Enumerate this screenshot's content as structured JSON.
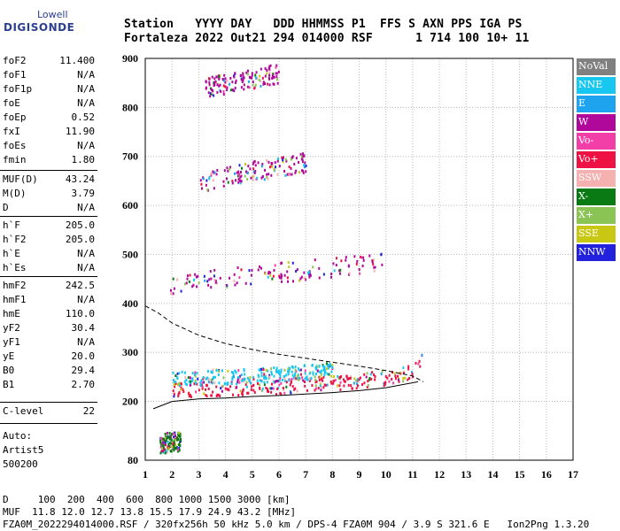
{
  "logo": {
    "top": "Lowell",
    "bottom": "DIGISONDE"
  },
  "header": {
    "row1": "Station   YYYY DAY   DDD HHMMSS P1  FFS S AXN PPS IGA PS",
    "row2": "Fortaleza 2022 Out21 294 014000 RSF      1 714 100 10+ 11"
  },
  "scaled": [
    {
      "k": "foF2",
      "v": "11.400"
    },
    {
      "k": "foF1",
      "v": "N/A"
    },
    {
      "k": "foF1p",
      "v": "N/A"
    },
    {
      "k": "foE",
      "v": "N/A"
    },
    {
      "k": "foEp",
      "v": "0.52"
    },
    {
      "k": "fxI",
      "v": "11.90"
    },
    {
      "k": "foEs",
      "v": "N/A"
    },
    {
      "k": "fmin",
      "v": "1.80"
    },
    {
      "k": "MUF(D)",
      "v": "43.24"
    },
    {
      "k": "M(D)",
      "v": "3.79"
    },
    {
      "k": "D",
      "v": "N/A"
    },
    {
      "k": "h`F",
      "v": "205.0"
    },
    {
      "k": "h`F2",
      "v": "205.0"
    },
    {
      "k": "h`E",
      "v": "N/A"
    },
    {
      "k": "h`Es",
      "v": "N/A"
    },
    {
      "k": "hmF2",
      "v": "242.5"
    },
    {
      "k": "hmF1",
      "v": "N/A"
    },
    {
      "k": "hmE",
      "v": "110.0"
    },
    {
      "k": "yF2",
      "v": "30.4"
    },
    {
      "k": "yF1",
      "v": "N/A"
    },
    {
      "k": "yE",
      "v": "20.0"
    },
    {
      "k": "B0",
      "v": "29.4"
    },
    {
      "k": "B1",
      "v": "2.70"
    },
    {
      "k": "C-level",
      "v": "22"
    }
  ],
  "notes": {
    "auto": "Auto:",
    "artist": "Artist5",
    "code": "500200"
  },
  "legend": [
    {
      "label": "NoVal",
      "color": "#808080"
    },
    {
      "label": "NNE",
      "color": "#17c7f0"
    },
    {
      "label": "E",
      "color": "#1ea3ee"
    },
    {
      "label": "W",
      "color": "#b0089a"
    },
    {
      "label": "Vo-",
      "color": "#f23fa8"
    },
    {
      "label": "Vo+",
      "color": "#ee1144"
    },
    {
      "label": "SSW",
      "color": "#f5b0b0"
    },
    {
      "label": "X-",
      "color": "#0a7a14"
    },
    {
      "label": "X+",
      "color": "#8ac455"
    },
    {
      "label": "SSE",
      "color": "#c8c814"
    },
    {
      "label": "NNW",
      "color": "#2222dd"
    }
  ],
  "footer": {
    "line1": "D     100  200  400  600  800 1000 1500 3000 [km]",
    "line2": "MUF  11.8 12.0 12.7 13.8 15.5 17.9 24.9 43.2 [MHz]",
    "line3": "FZA0M_2022294014000.RSF / 320fx256h 50 kHz 5.0 km / DPS-4 FZA0M 904 / 3.9 S 321.6 E   Ion2Png 1.3.20"
  },
  "chart_data": {
    "type": "scatter",
    "title": "",
    "xlabel": "",
    "ylabel": "",
    "xlim": [
      1,
      17
    ],
    "ylim": [
      80,
      900
    ],
    "x_ticks": [
      1,
      2,
      3,
      4,
      5,
      6,
      7,
      8,
      9,
      10,
      11,
      12,
      13,
      14,
      15,
      16,
      17
    ],
    "y_ticks": [
      80,
      200,
      300,
      400,
      500,
      600,
      700,
      800,
      900
    ],
    "grid": true,
    "legend_position": "right",
    "traces": [
      {
        "name": "Vo+",
        "color": "#ee1144",
        "x": [
          2.0,
          4.0,
          6.0,
          8.0,
          10.0,
          11.0,
          11.4
        ],
        "y": [
          225,
          228,
          232,
          240,
          250,
          262,
          295
        ]
      },
      {
        "name": "NNE",
        "color": "#17c7f0",
        "x": [
          2.0,
          3.0,
          4.0,
          5.0,
          6.0,
          7.0,
          8.0
        ],
        "y": [
          248,
          252,
          252,
          255,
          258,
          262,
          268
        ]
      },
      {
        "name": "W",
        "color": "#b0089a",
        "x": [
          1.9,
          3.0,
          4.0,
          5.0,
          6.0,
          7.0,
          8.0,
          9.0,
          10.0
        ],
        "y": [
          440,
          448,
          455,
          460,
          465,
          470,
          475,
          480,
          495
        ]
      },
      {
        "name": "W",
        "color": "#b0089a",
        "x": [
          3.0,
          4.0,
          5.0,
          6.0,
          7.0
        ],
        "y": [
          645,
          660,
          672,
          680,
          690
        ]
      },
      {
        "name": "W",
        "color": "#b0089a",
        "x": [
          3.2,
          4.0,
          5.0,
          6.0
        ],
        "y": [
          843,
          850,
          860,
          872
        ]
      },
      {
        "name": "X-",
        "color": "#0a7a14",
        "x": [
          1.5,
          2.0,
          2.3
        ],
        "y": [
          115,
          120,
          118
        ]
      }
    ],
    "model_curves": [
      {
        "x": [
          1.3,
          2,
          3,
          4,
          5,
          6,
          7,
          8,
          9,
          10,
          11.2
        ],
        "y": [
          185,
          200,
          205,
          207,
          210,
          212,
          215,
          218,
          222,
          228,
          240
        ]
      },
      {
        "x": [
          1.0,
          1.5,
          2,
          3,
          4,
          5,
          6,
          7,
          8,
          9,
          10,
          11,
          11.4
        ],
        "y": [
          395,
          380,
          360,
          335,
          318,
          306,
          296,
          288,
          280,
          272,
          263,
          252,
          240
        ]
      }
    ]
  }
}
